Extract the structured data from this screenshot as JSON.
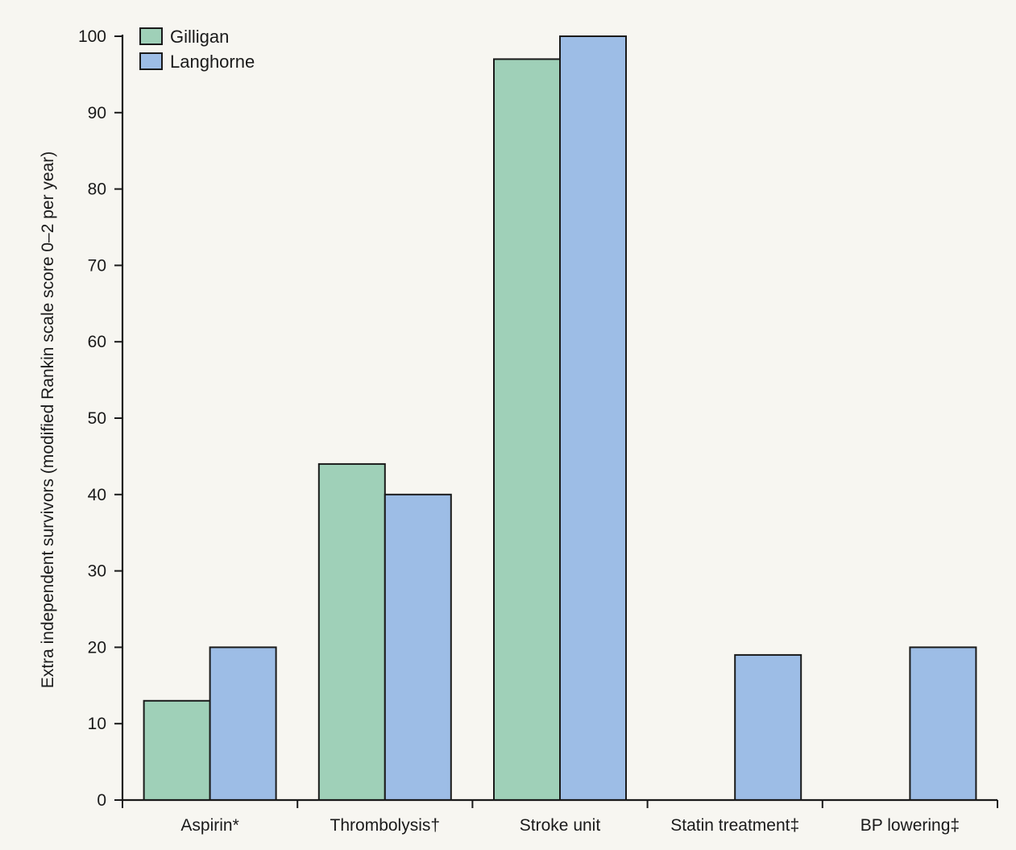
{
  "colors": {
    "background": "#f7f6f1",
    "gilligan": "#9fd0b8",
    "langhorne": "#9dbde6",
    "axis": "#1a1a1a"
  },
  "chart_data": {
    "type": "bar",
    "title": "",
    "xlabel": "",
    "ylabel": "Extra independent survivors (modified Rankin scale score 0–2 per year)",
    "ylim": [
      0,
      100
    ],
    "yticks": [
      0,
      10,
      20,
      30,
      40,
      50,
      60,
      70,
      80,
      90,
      100
    ],
    "categories": [
      "Aspirin*",
      "Thrombolysis†",
      "Stroke unit",
      "Statin treatment‡",
      "BP lowering‡"
    ],
    "series": [
      {
        "name": "Gilligan",
        "color": "#9fd0b8",
        "values": [
          13,
          44,
          97,
          null,
          null
        ]
      },
      {
        "name": "Langhorne",
        "color": "#9dbde6",
        "values": [
          20,
          40,
          100,
          19,
          20
        ]
      }
    ],
    "legend_position": "top-left",
    "grid": false
  }
}
